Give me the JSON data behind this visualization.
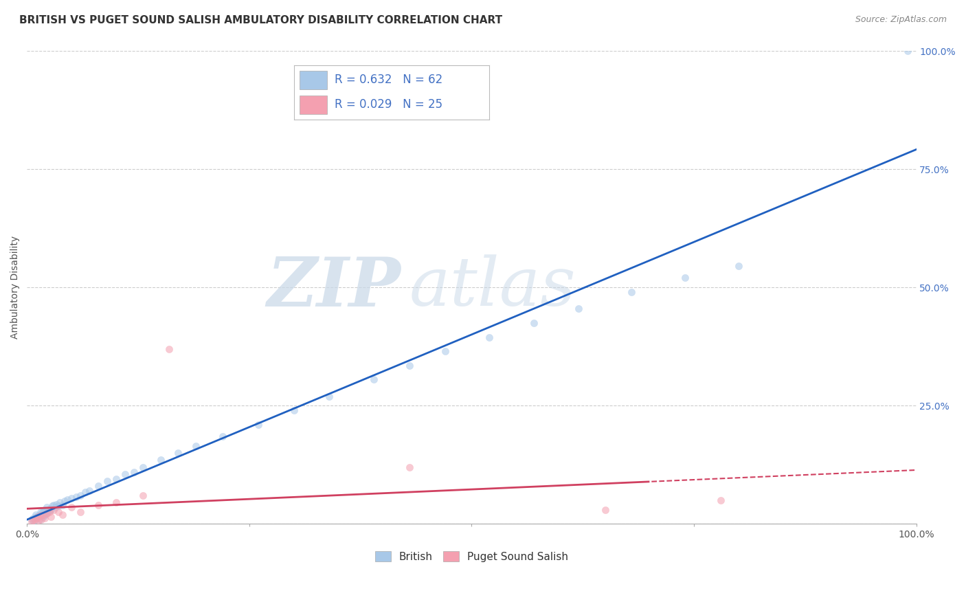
{
  "title": "BRITISH VS PUGET SOUND SALISH AMBULATORY DISABILITY CORRELATION CHART",
  "source": "Source: ZipAtlas.com",
  "ylabel": "Ambulatory Disability",
  "legend_british_R": "R = 0.632",
  "legend_british_N": "N = 62",
  "legend_salish_R": "R = 0.029",
  "legend_salish_N": "N = 25",
  "british_color": "#a8c8e8",
  "salish_color": "#f4a0b0",
  "british_line_color": "#2060c0",
  "salish_line_color": "#d04060",
  "watermark_zip": "ZIP",
  "watermark_atlas": "atlas",
  "xlim": [
    0,
    1
  ],
  "ylim": [
    0,
    1
  ],
  "right_tick_color": "#4472c4",
  "background_color": "#ffffff",
  "grid_color": "#cccccc",
  "british_x": [
    0.005,
    0.007,
    0.008,
    0.01,
    0.01,
    0.012,
    0.013,
    0.014,
    0.015,
    0.015,
    0.016,
    0.017,
    0.018,
    0.018,
    0.019,
    0.02,
    0.02,
    0.021,
    0.022,
    0.022,
    0.023,
    0.024,
    0.025,
    0.026,
    0.027,
    0.028,
    0.03,
    0.032,
    0.033,
    0.035,
    0.037,
    0.04,
    0.042,
    0.045,
    0.05,
    0.055,
    0.06,
    0.065,
    0.07,
    0.08,
    0.09,
    0.1,
    0.11,
    0.12,
    0.13,
    0.15,
    0.17,
    0.19,
    0.22,
    0.26,
    0.3,
    0.34,
    0.39,
    0.43,
    0.47,
    0.52,
    0.57,
    0.62,
    0.68,
    0.74,
    0.8,
    0.99
  ],
  "british_y": [
    0.01,
    0.012,
    0.008,
    0.015,
    0.02,
    0.015,
    0.018,
    0.01,
    0.025,
    0.02,
    0.022,
    0.018,
    0.028,
    0.015,
    0.025,
    0.02,
    0.03,
    0.025,
    0.022,
    0.035,
    0.028,
    0.03,
    0.028,
    0.032,
    0.03,
    0.038,
    0.04,
    0.035,
    0.042,
    0.038,
    0.045,
    0.04,
    0.048,
    0.052,
    0.055,
    0.058,
    0.06,
    0.068,
    0.07,
    0.08,
    0.09,
    0.095,
    0.105,
    0.11,
    0.12,
    0.135,
    0.15,
    0.165,
    0.185,
    0.21,
    0.24,
    0.27,
    0.305,
    0.335,
    0.365,
    0.395,
    0.425,
    0.455,
    0.49,
    0.52,
    0.545,
    1.0
  ],
  "salish_x": [
    0.005,
    0.007,
    0.009,
    0.011,
    0.012,
    0.013,
    0.015,
    0.016,
    0.018,
    0.02,
    0.022,
    0.025,
    0.027,
    0.03,
    0.035,
    0.04,
    0.05,
    0.06,
    0.08,
    0.1,
    0.13,
    0.16,
    0.43,
    0.65,
    0.78
  ],
  "salish_y": [
    0.005,
    0.008,
    0.01,
    0.012,
    0.015,
    0.008,
    0.018,
    0.01,
    0.02,
    0.012,
    0.022,
    0.025,
    0.015,
    0.03,
    0.025,
    0.02,
    0.035,
    0.025,
    0.04,
    0.045,
    0.06,
    0.37,
    0.12,
    0.03,
    0.05
  ],
  "title_fontsize": 11,
  "axis_label_fontsize": 10,
  "tick_fontsize": 10,
  "marker_size": 55,
  "marker_alpha": 0.55
}
